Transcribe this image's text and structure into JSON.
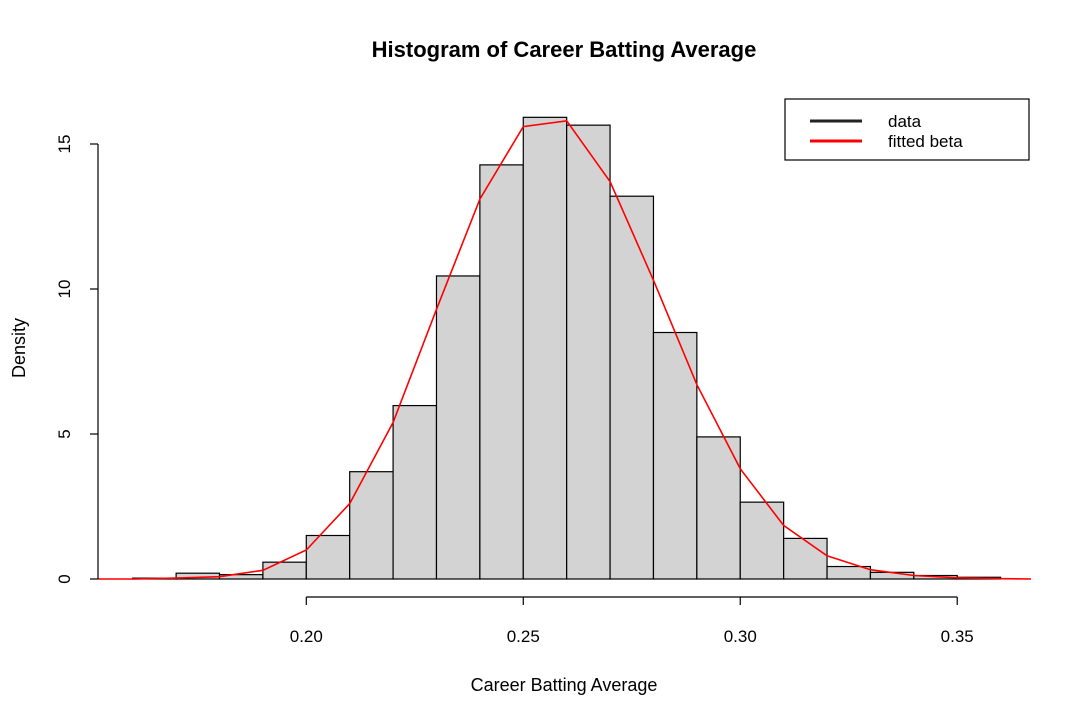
{
  "chart_data": {
    "type": "bar",
    "title": "Histogram of Career Batting Average",
    "xlabel": "Career Batting Average",
    "ylabel": "Density",
    "xlim": [
      0.152,
      0.367
    ],
    "ylim": [
      0,
      16.3
    ],
    "x_ticks": [
      0.2,
      0.25,
      0.3,
      0.35
    ],
    "x_tick_labels": [
      "0.20",
      "0.25",
      "0.30",
      "0.35"
    ],
    "y_ticks": [
      0,
      5,
      10,
      15
    ],
    "y_tick_labels": [
      "0",
      "5",
      "10",
      "15"
    ],
    "grid": false,
    "bar_fill": "#d3d3d3",
    "bins": [
      {
        "start": 0.16,
        "end": 0.17,
        "density": 0.03
      },
      {
        "start": 0.17,
        "end": 0.18,
        "density": 0.2
      },
      {
        "start": 0.18,
        "end": 0.19,
        "density": 0.15
      },
      {
        "start": 0.19,
        "end": 0.2,
        "density": 0.58
      },
      {
        "start": 0.2,
        "end": 0.21,
        "density": 1.5
      },
      {
        "start": 0.21,
        "end": 0.22,
        "density": 3.7
      },
      {
        "start": 0.22,
        "end": 0.23,
        "density": 5.98
      },
      {
        "start": 0.23,
        "end": 0.24,
        "density": 10.45
      },
      {
        "start": 0.24,
        "end": 0.25,
        "density": 14.28
      },
      {
        "start": 0.25,
        "end": 0.26,
        "density": 15.92
      },
      {
        "start": 0.26,
        "end": 0.27,
        "density": 15.65
      },
      {
        "start": 0.27,
        "end": 0.28,
        "density": 13.2
      },
      {
        "start": 0.28,
        "end": 0.29,
        "density": 8.5
      },
      {
        "start": 0.29,
        "end": 0.3,
        "density": 4.9
      },
      {
        "start": 0.3,
        "end": 0.31,
        "density": 2.65
      },
      {
        "start": 0.31,
        "end": 0.32,
        "density": 1.4
      },
      {
        "start": 0.32,
        "end": 0.33,
        "density": 0.43
      },
      {
        "start": 0.33,
        "end": 0.34,
        "density": 0.23
      },
      {
        "start": 0.34,
        "end": 0.35,
        "density": 0.12
      },
      {
        "start": 0.35,
        "end": 0.36,
        "density": 0.06
      }
    ],
    "fitted_curve": {
      "name": "fitted beta",
      "color": "#ff0000",
      "x": [
        0.152,
        0.16,
        0.17,
        0.18,
        0.19,
        0.2,
        0.21,
        0.22,
        0.23,
        0.24,
        0.25,
        0.26,
        0.27,
        0.28,
        0.29,
        0.3,
        0.31,
        0.32,
        0.33,
        0.34,
        0.35,
        0.36,
        0.367
      ],
      "y": [
        0.0,
        0.0,
        0.03,
        0.08,
        0.3,
        1.0,
        2.6,
        5.4,
        9.3,
        13.1,
        15.6,
        15.8,
        13.7,
        10.3,
        6.7,
        3.8,
        1.85,
        0.8,
        0.32,
        0.12,
        0.04,
        0.01,
        0.0
      ]
    },
    "legend": {
      "position": "top-right",
      "entries": [
        {
          "label": "data",
          "color": "#222222"
        },
        {
          "label": "fitted beta",
          "color": "#ff0000"
        }
      ]
    }
  }
}
